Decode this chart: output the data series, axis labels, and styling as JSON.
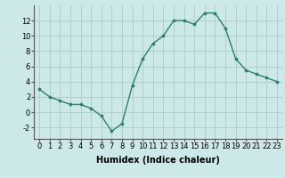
{
  "x": [
    0,
    1,
    2,
    3,
    4,
    5,
    6,
    7,
    8,
    9,
    10,
    11,
    12,
    13,
    14,
    15,
    16,
    17,
    18,
    19,
    20,
    21,
    22,
    23
  ],
  "y": [
    3,
    2,
    1.5,
    1,
    1,
    0.5,
    -0.5,
    -2.5,
    -1.5,
    3.5,
    7,
    9,
    10,
    12,
    12,
    11.5,
    13,
    13,
    11,
    7,
    5.5,
    5,
    4.5,
    4
  ],
  "line_color": "#2e7d6e",
  "marker": "o",
  "marker_size": 2.2,
  "bg_color": "#cce8e8",
  "grid_color": "#b0cfcf",
  "xlabel": "Humidex (Indice chaleur)",
  "ylim": [
    -3.5,
    14
  ],
  "xlim": [
    -0.5,
    23.5
  ],
  "yticks": [
    -2,
    0,
    2,
    4,
    6,
    8,
    10,
    12
  ],
  "xticks": [
    0,
    1,
    2,
    3,
    4,
    5,
    6,
    7,
    8,
    9,
    10,
    11,
    12,
    13,
    14,
    15,
    16,
    17,
    18,
    19,
    20,
    21,
    22,
    23
  ],
  "tick_font_size": 6,
  "label_font_size": 7,
  "linewidth": 1.0
}
